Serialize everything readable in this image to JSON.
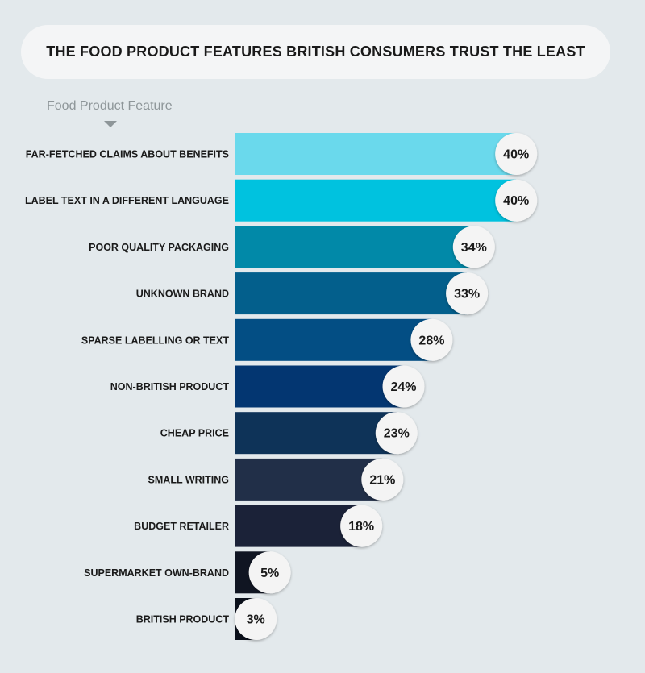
{
  "title": "THE FOOD PRODUCT FEATURES BRITISH CONSUMERS TRUST THE LEAST",
  "axis_heading": "Food Product Feature",
  "chart_data": {
    "type": "bar",
    "orientation": "horizontal",
    "title": "THE FOOD PRODUCT FEATURES BRITISH CONSUMERS TRUST THE LEAST",
    "ylabel": "Food Product Feature",
    "xlabel": "",
    "categories": [
      "FAR-FETCHED CLAIMS ABOUT BENEFITS",
      "LABEL TEXT IN A DIFFERENT LANGUAGE",
      "POOR QUALITY PACKAGING",
      "UNKNOWN BRAND",
      "SPARSE LABELLING OR TEXT",
      "NON-BRITISH PRODUCT",
      "CHEAP PRICE",
      "SMALL WRITING",
      "BUDGET RETAILER",
      "SUPERMARKET OWN-BRAND",
      "BRITISH PRODUCT"
    ],
    "values": [
      40,
      40,
      34,
      33,
      28,
      24,
      23,
      21,
      18,
      5,
      3
    ],
    "value_labels": [
      "40%",
      "40%",
      "34%",
      "33%",
      "28%",
      "24%",
      "23%",
      "21%",
      "18%",
      "5%",
      "3%"
    ],
    "unit": "%",
    "colors": [
      "#6ad9ec",
      "#00c2df",
      "#0189a8",
      "#035f8c",
      "#034e84",
      "#033671",
      "#0e3358",
      "#212f48",
      "#1b2238",
      "#101522",
      "#0a0f1a"
    ],
    "grid": false,
    "legend": "none"
  }
}
